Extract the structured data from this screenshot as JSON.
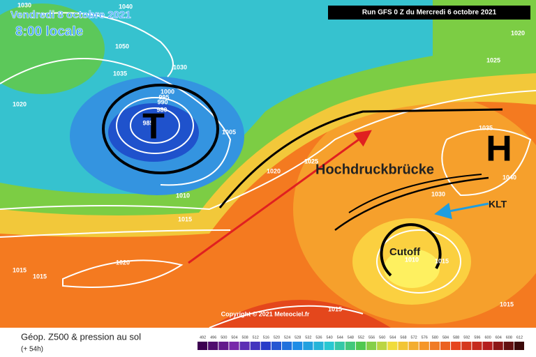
{
  "header": {
    "date": "Vendredi 8 octobre 2021",
    "time": "8:00 locale",
    "run": "Run GFS 0 Z du Mercredi 6 octobre 2021"
  },
  "annotations": {
    "low": "T",
    "high": "H",
    "ridge": "Hochdruckbrücke",
    "klt": "KLT",
    "cutoff": "Cutoff"
  },
  "isobar_labels": [
    "1030",
    "1040",
    "1050",
    "1035",
    "1030",
    "1020",
    "1000",
    "995",
    "990",
    "980",
    "985",
    "1005",
    "1025",
    "1020",
    "1025",
    "1010",
    "1015",
    "1020",
    "1015",
    "1015",
    "1030",
    "1035",
    "1040",
    "1020",
    "1025",
    "1010",
    "1015",
    "1015",
    "1015"
  ],
  "copyright": "Copyright © 2021 Meteociel.fr",
  "footer": {
    "title": "Géop. Z500 & pression au sol",
    "lead": "(+ 54h)"
  },
  "colorbar": [
    492,
    496,
    500,
    504,
    508,
    512,
    516,
    520,
    524,
    528,
    532,
    536,
    540,
    544,
    548,
    552,
    556,
    560,
    564,
    568,
    572,
    576,
    580,
    584,
    588,
    592,
    596,
    600,
    604,
    608,
    612
  ]
}
